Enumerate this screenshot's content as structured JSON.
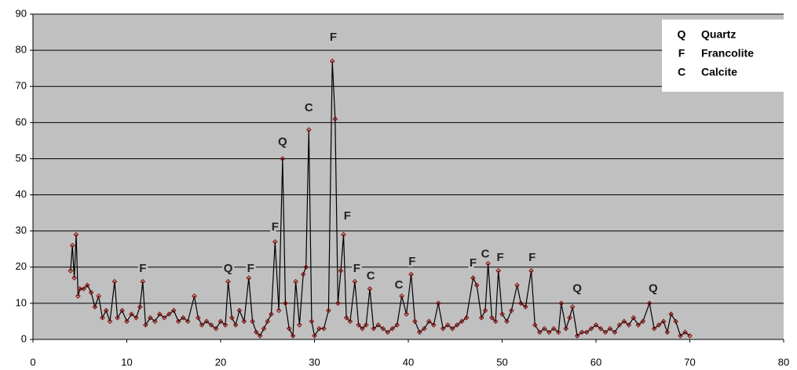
{
  "chart_data": {
    "type": "line",
    "x": [
      4.0,
      4.2,
      4.4,
      4.6,
      4.8,
      5.0,
      5.4,
      5.8,
      6.2,
      6.6,
      7.0,
      7.4,
      7.8,
      8.2,
      8.7,
      9.0,
      9.5,
      10.0,
      10.5,
      11.0,
      11.4,
      11.7,
      12.0,
      12.5,
      13.0,
      13.5,
      14.0,
      14.5,
      15.0,
      15.5,
      16.0,
      16.5,
      17.2,
      17.6,
      18.0,
      18.5,
      19.0,
      19.5,
      20.0,
      20.5,
      20.8,
      21.2,
      21.6,
      22.0,
      22.5,
      23.0,
      23.4,
      23.8,
      24.2,
      24.6,
      25.0,
      25.4,
      25.8,
      26.2,
      26.6,
      26.9,
      27.3,
      27.7,
      28.0,
      28.4,
      28.8,
      29.1,
      29.4,
      29.7,
      30.0,
      30.5,
      31.0,
      31.5,
      31.9,
      32.2,
      32.5,
      32.8,
      33.1,
      33.4,
      33.8,
      34.3,
      34.7,
      35.1,
      35.5,
      35.9,
      36.3,
      36.8,
      37.3,
      37.8,
      38.3,
      38.8,
      39.3,
      39.8,
      40.3,
      40.7,
      41.2,
      41.7,
      42.2,
      42.7,
      43.2,
      43.7,
      44.2,
      44.7,
      45.2,
      45.7,
      46.2,
      46.9,
      47.3,
      47.8,
      48.2,
      48.5,
      48.9,
      49.3,
      49.6,
      50.0,
      50.5,
      51.0,
      51.6,
      52.0,
      52.5,
      53.1,
      53.5,
      54.0,
      54.5,
      55.0,
      55.5,
      56.0,
      56.3,
      56.8,
      57.2,
      57.5,
      58.0,
      58.5,
      59.0,
      59.5,
      60.0,
      60.5,
      61.0,
      61.5,
      62.0,
      62.5,
      63.0,
      63.5,
      64.0,
      64.5,
      65.0,
      65.7,
      66.2,
      66.7,
      67.2,
      67.6,
      68.0,
      68.5,
      69.0,
      69.5,
      70.0
    ],
    "values": [
      19,
      26,
      17,
      29,
      12,
      14,
      14,
      15,
      13,
      9,
      12,
      6,
      8,
      5,
      16,
      6,
      8,
      5,
      7,
      6,
      9,
      16,
      4,
      6,
      5,
      7,
      6,
      7,
      8,
      5,
      6,
      5,
      12,
      6,
      4,
      5,
      4,
      3,
      5,
      4,
      16,
      6,
      4,
      8,
      5,
      17,
      5,
      2,
      1,
      3,
      5,
      7,
      27,
      8,
      50,
      10,
      3,
      1,
      16,
      4,
      18,
      20,
      58,
      5,
      1,
      3,
      3,
      8,
      77,
      61,
      10,
      19,
      29,
      6,
      5,
      16,
      4,
      3,
      4,
      14,
      3,
      4,
      3,
      2,
      3,
      4,
      12,
      7,
      18,
      5,
      2,
      3,
      5,
      4,
      10,
      3,
      4,
      3,
      4,
      5,
      6,
      17,
      15,
      6,
      8,
      21,
      6,
      5,
      19,
      7,
      5,
      8,
      15,
      10,
      9,
      19,
      4,
      2,
      3,
      2,
      3,
      2,
      10,
      3,
      6,
      9,
      1,
      2,
      2,
      3,
      4,
      3,
      2,
      3,
      2,
      4,
      5,
      4,
      6,
      4,
      5,
      10,
      3,
      4,
      5,
      2,
      7,
      5,
      1,
      2,
      1
    ],
    "color": "#000000",
    "marker_color": "#8b0000",
    "xlim": [
      0,
      80
    ],
    "xticks": [
      0,
      10,
      20,
      30,
      40,
      50,
      60,
      70,
      80
    ],
    "ylim": [
      0,
      90
    ],
    "yticks": [
      0,
      10,
      20,
      30,
      40,
      50,
      60,
      70,
      80,
      90
    ],
    "grid": true,
    "annotations": [
      {
        "text": "F",
        "x": 11.7,
        "y": 19.5
      },
      {
        "text": "Q",
        "x": 20.8,
        "y": 19.5
      },
      {
        "text": "F",
        "x": 23.2,
        "y": 19.5
      },
      {
        "text": "F",
        "x": 25.8,
        "y": 31
      },
      {
        "text": "Q",
        "x": 26.6,
        "y": 54.5
      },
      {
        "text": "C",
        "x": 29.4,
        "y": 64
      },
      {
        "text": "F",
        "x": 32.0,
        "y": 83.5
      },
      {
        "text": "F",
        "x": 33.5,
        "y": 34
      },
      {
        "text": "F",
        "x": 34.5,
        "y": 19.5
      },
      {
        "text": "C",
        "x": 36.0,
        "y": 17.5
      },
      {
        "text": "C",
        "x": 39.0,
        "y": 15
      },
      {
        "text": "F",
        "x": 40.4,
        "y": 21.5
      },
      {
        "text": "F",
        "x": 46.9,
        "y": 21
      },
      {
        "text": "C",
        "x": 48.2,
        "y": 23.5
      },
      {
        "text": "F",
        "x": 49.8,
        "y": 22.5
      },
      {
        "text": "F",
        "x": 53.2,
        "y": 22.5
      },
      {
        "text": "Q",
        "x": 58.0,
        "y": 14
      },
      {
        "text": "Q",
        "x": 66.1,
        "y": 14
      }
    ],
    "legend_entries": [
      {
        "symbol": "Q",
        "name": "Quartz"
      },
      {
        "symbol": "F",
        "name": "Francolite"
      },
      {
        "symbol": "C",
        "name": "Calcite"
      }
    ]
  }
}
